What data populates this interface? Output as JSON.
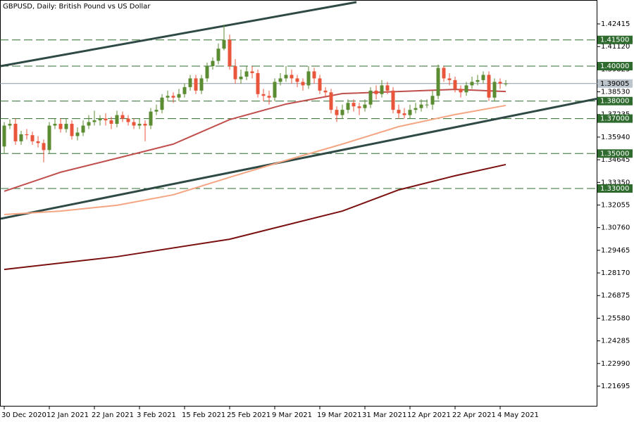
{
  "chart_data": {
    "type": "candlestick",
    "title": "GBPUSD, Daily:  British Pound vs US Dollar",
    "categories": [
      "30 Dec 2020",
      null,
      null,
      null,
      null,
      null,
      null,
      null,
      "12 Jan 2021",
      null,
      null,
      null,
      null,
      null,
      null,
      null,
      "22 Jan 2021",
      null,
      null,
      null,
      null,
      null,
      null,
      null,
      "3 Feb 2021",
      null,
      null,
      null,
      null,
      null,
      null,
      null,
      "15 Feb 2021",
      null,
      null,
      null,
      null,
      null,
      null,
      null,
      "25 Feb 2021",
      null,
      null,
      null,
      null,
      null,
      null,
      null,
      "9 Mar 2021",
      null,
      null,
      null,
      null,
      null,
      null,
      null,
      "19 Mar 2021",
      null,
      null,
      null,
      null,
      null,
      null,
      null,
      "31 Mar 2021",
      null,
      null,
      null,
      null,
      null,
      null,
      null,
      "12 Apr 2021",
      null,
      null,
      null,
      null,
      null,
      null,
      null,
      "22 Apr 2021",
      null,
      null,
      null,
      null,
      null,
      null,
      null,
      "4 May 2021",
      null
    ],
    "open": [
      1.354,
      1.366,
      1.367,
      1.357,
      1.361,
      1.3605,
      1.357,
      1.356,
      1.352,
      1.366,
      1.367,
      1.364,
      1.367,
      1.36,
      1.362,
      1.366,
      1.368,
      1.369,
      1.37,
      1.369,
      1.367,
      1.372,
      1.37,
      1.368,
      1.366,
      1.367,
      1.366,
      1.374,
      1.375,
      1.382,
      1.383,
      1.382,
      1.384,
      1.388,
      1.393,
      1.386,
      1.393,
      1.4,
      1.403,
      1.41,
      1.415,
      1.4,
      1.3925,
      1.394,
      1.397,
      1.396,
      1.384,
      1.383,
      1.382,
      1.391,
      1.393,
      1.395,
      1.393,
      1.391,
      1.389,
      1.397,
      1.393,
      1.386,
      1.385,
      1.375,
      1.372,
      1.375,
      1.379,
      1.377,
      1.376,
      1.378,
      1.386,
      1.384,
      1.389,
      1.386,
      1.375,
      1.373,
      1.372,
      1.375,
      1.376,
      1.378,
      1.378,
      1.383,
      1.399,
      1.393,
      1.392,
      1.387,
      1.385,
      1.389,
      1.391,
      1.392,
      1.395,
      1.382,
      1.391,
      1.39
    ],
    "high": [
      1.368,
      1.3695,
      1.37,
      1.363,
      1.364,
      1.3625,
      1.36,
      1.358,
      1.368,
      1.37,
      1.37,
      1.37,
      1.369,
      1.365,
      1.369,
      1.372,
      1.3745,
      1.372,
      1.373,
      1.371,
      1.3745,
      1.374,
      1.372,
      1.37,
      1.37,
      1.369,
      1.376,
      1.378,
      1.384,
      1.386,
      1.385,
      1.387,
      1.39,
      1.395,
      1.395,
      1.395,
      1.402,
      1.405,
      1.413,
      1.4237,
      1.418,
      1.404,
      1.398,
      1.4,
      1.4,
      1.398,
      1.387,
      1.386,
      1.393,
      1.396,
      1.4,
      1.398,
      1.395,
      1.393,
      1.4,
      1.399,
      1.395,
      1.388,
      1.387,
      1.377,
      1.378,
      1.381,
      1.381,
      1.379,
      1.381,
      1.388,
      1.389,
      1.392,
      1.391,
      1.388,
      1.378,
      1.376,
      1.378,
      1.379,
      1.381,
      1.381,
      1.386,
      1.4009,
      1.4,
      1.396,
      1.394,
      1.389,
      1.391,
      1.394,
      1.395,
      1.397,
      1.397,
      1.393,
      1.393,
      1.392
    ],
    "low": [
      1.35,
      1.364,
      1.355,
      1.355,
      1.358,
      1.355,
      1.3535,
      1.345,
      1.35,
      1.364,
      1.362,
      1.362,
      1.358,
      1.3575,
      1.36,
      1.364,
      1.366,
      1.366,
      1.366,
      1.364,
      1.365,
      1.368,
      1.366,
      1.364,
      1.364,
      1.357,
      1.364,
      1.372,
      1.373,
      1.38,
      1.379,
      1.38,
      1.382,
      1.386,
      1.384,
      1.384,
      1.391,
      1.398,
      1.401,
      1.409,
      1.398,
      1.39,
      1.39,
      1.392,
      1.393,
      1.382,
      1.38,
      1.378,
      1.38,
      1.389,
      1.391,
      1.39,
      1.388,
      1.386,
      1.387,
      1.39,
      1.384,
      1.382,
      1.373,
      1.368,
      1.37,
      1.373,
      1.374,
      1.372,
      1.374,
      1.376,
      1.381,
      1.382,
      1.384,
      1.373,
      1.37,
      1.37,
      1.37,
      1.373,
      1.374,
      1.376,
      1.375,
      1.381,
      1.391,
      1.389,
      1.385,
      1.382,
      1.383,
      1.387,
      1.389,
      1.39,
      1.38,
      1.38,
      1.387,
      1.3885
    ],
    "close": [
      1.366,
      1.367,
      1.357,
      1.361,
      1.3605,
      1.357,
      1.356,
      1.352,
      1.366,
      1.367,
      1.364,
      1.367,
      1.36,
      1.362,
      1.366,
      1.368,
      1.369,
      1.37,
      1.369,
      1.367,
      1.372,
      1.37,
      1.368,
      1.366,
      1.367,
      1.366,
      1.374,
      1.375,
      1.382,
      1.383,
      1.382,
      1.384,
      1.388,
      1.393,
      1.386,
      1.393,
      1.4,
      1.403,
      1.41,
      1.415,
      1.4,
      1.3925,
      1.394,
      1.397,
      1.396,
      1.384,
      1.383,
      1.382,
      1.391,
      1.393,
      1.395,
      1.393,
      1.391,
      1.389,
      1.397,
      1.393,
      1.386,
      1.385,
      1.375,
      1.372,
      1.375,
      1.379,
      1.377,
      1.376,
      1.378,
      1.386,
      1.384,
      1.389,
      1.386,
      1.375,
      1.373,
      1.372,
      1.375,
      1.376,
      1.378,
      1.378,
      1.383,
      1.399,
      1.393,
      1.392,
      1.387,
      1.385,
      1.389,
      1.391,
      1.392,
      1.395,
      1.382,
      1.391,
      1.39,
      1.39005
    ],
    "up_color": "#5b8c32",
    "down_color": "#e8553a",
    "ylim": [
      1.20528,
      1.43783
    ],
    "yticks": [
      1.42415,
      {
        "value": 1.4112,
        "label": "1.41120"
      },
      1.39825,
      {
        "value": 1.3853,
        "label": "1.38530"
      },
      1.37235,
      {
        "value": 1.3594,
        "label": "1.35940"
      },
      1.34645,
      {
        "value": 1.3335,
        "label": "1.33350"
      },
      1.32055,
      {
        "value": 1.3076,
        "label": "1.30760"
      },
      1.29465,
      {
        "value": 1.2817,
        "label": "1.28170"
      },
      1.26875,
      {
        "value": 1.2558,
        "label": "1.25580"
      },
      1.24285,
      {
        "value": 1.2299,
        "label": "1.22990"
      },
      1.21695
    ],
    "levels": [
      {
        "value": 1.415,
        "label": "1.41500"
      },
      {
        "value": 1.4,
        "label": "1.40000"
      },
      {
        "value": 1.38,
        "label": "1.38000"
      },
      {
        "value": 1.37,
        "label": "1.37000"
      },
      {
        "value": 1.35,
        "label": "1.35000"
      },
      {
        "value": 1.33,
        "label": "1.33000"
      }
    ],
    "level_color": "#2f6b2f",
    "current_price": 1.39005,
    "moving_averages": [
      {
        "color": "#c0504d",
        "x": [
          0,
          10,
          20,
          30,
          40,
          50,
          60,
          70,
          80,
          89
        ],
        "values": [
          1.3284,
          1.3393,
          1.3473,
          1.3554,
          1.3694,
          1.3783,
          1.3843,
          1.3855,
          1.3867,
          1.3855
        ]
      },
      {
        "color": "#f4a582",
        "x": [
          0,
          10,
          20,
          30,
          40,
          50,
          60,
          70,
          80,
          89
        ],
        "values": [
          1.3151,
          1.3171,
          1.3204,
          1.3264,
          1.3364,
          1.3461,
          1.3554,
          1.3654,
          1.3723,
          1.3775
        ]
      },
      {
        "color": "#7b1010",
        "x": [
          0,
          20,
          40,
          60,
          70,
          80,
          89
        ],
        "values": [
          1.2837,
          1.291,
          1.301,
          1.3171,
          1.3292,
          1.3373,
          1.3437
        ]
      }
    ],
    "trendlines": [
      {
        "color": "#2f4a44",
        "x": [
          -0.625,
          62.5
        ],
        "y": [
          1.40002,
          1.43662
        ]
      },
      {
        "color": "#2f4a44",
        "x": [
          -0.625,
          105.4
        ],
        "y": [
          1.31272,
          1.38151
        ]
      }
    ]
  }
}
